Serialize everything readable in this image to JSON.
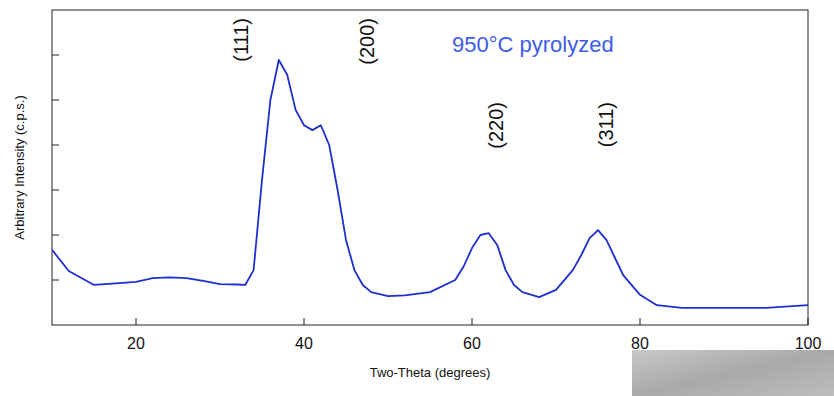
{
  "chart_data": {
    "type": "line",
    "title": "950°C pyrolyzed",
    "x_label": "Two-Theta (degrees)",
    "y_label": "Arbitrary Intensity (c.p.s.)",
    "x": [
      10,
      12,
      15,
      18,
      20,
      22,
      24,
      26,
      28,
      30,
      32,
      33,
      34,
      35,
      36,
      37,
      38,
      39,
      40,
      41,
      42,
      43,
      44,
      45,
      46,
      47,
      48,
      50,
      52,
      55,
      58,
      59,
      60,
      61,
      62,
      63,
      64,
      65,
      66,
      68,
      70,
      72,
      73,
      74,
      75,
      76,
      77,
      78,
      80,
      82,
      85,
      90,
      95,
      100
    ],
    "values": [
      1.67,
      1.2,
      0.89,
      0.93,
      0.96,
      1.04,
      1.06,
      1.04,
      0.98,
      0.91,
      0.9,
      0.89,
      1.22,
      3.22,
      5.0,
      5.89,
      5.56,
      4.78,
      4.44,
      4.33,
      4.44,
      4.0,
      3.0,
      1.89,
      1.22,
      0.89,
      0.73,
      0.64,
      0.66,
      0.73,
      1.0,
      1.3,
      1.71,
      2.0,
      2.04,
      1.78,
      1.22,
      0.89,
      0.73,
      0.62,
      0.78,
      1.22,
      1.55,
      1.93,
      2.11,
      1.89,
      1.5,
      1.11,
      0.67,
      0.44,
      0.38,
      0.38,
      0.38,
      0.44
    ],
    "color": "#1f2fd0",
    "xlim": [
      10,
      100
    ],
    "xticks": [
      20,
      40,
      60,
      80,
      100
    ],
    "ylim": [
      0,
      7
    ],
    "yticks": [
      1,
      2,
      3,
      4,
      5,
      6
    ],
    "tick_labels": "x",
    "grid": false,
    "annotations": [
      {
        "text": "(111)",
        "x": 32.5
      },
      {
        "text": "(200)",
        "x": 47.5
      },
      {
        "text": "(220)",
        "x": 62.8
      },
      {
        "text": "(311)",
        "x": 76
      }
    ]
  }
}
